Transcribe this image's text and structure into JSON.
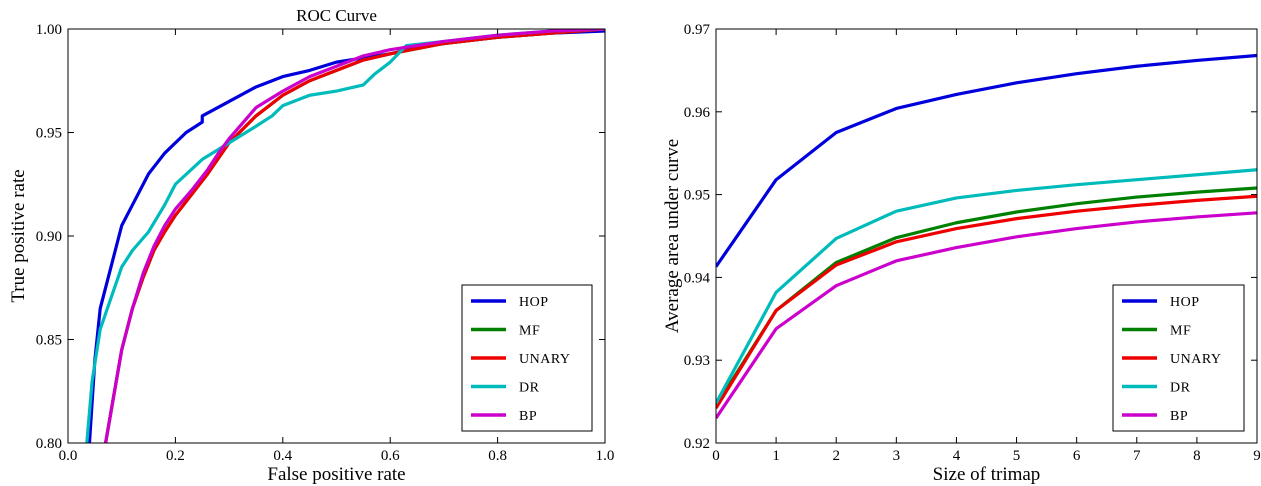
{
  "chart_data": [
    {
      "type": "line",
      "title": "ROC Curve",
      "xlabel": "False positive rate",
      "ylabel": "True positive rate",
      "xlim": [
        0.0,
        1.0
      ],
      "ylim": [
        0.8,
        1.0
      ],
      "xticks": [
        "0.0",
        "0.2",
        "0.4",
        "0.6",
        "0.8",
        "1.0"
      ],
      "yticks": [
        "0.80",
        "0.85",
        "0.90",
        "0.95",
        "1.00"
      ],
      "grid": false,
      "legend_position": "bottom-right",
      "series": [
        {
          "name": "HOP",
          "color": "#0000dd",
          "x": [
            0.04,
            0.05,
            0.06,
            0.08,
            0.1,
            0.12,
            0.14,
            0.15,
            0.18,
            0.22,
            0.25,
            0.25,
            0.3,
            0.35,
            0.4,
            0.45,
            0.5,
            0.55,
            0.6,
            0.65,
            0.7,
            0.8,
            0.9,
            1.0
          ],
          "y": [
            0.8,
            0.84,
            0.865,
            0.885,
            0.905,
            0.915,
            0.925,
            0.93,
            0.94,
            0.95,
            0.955,
            0.958,
            0.965,
            0.972,
            0.977,
            0.98,
            0.984,
            0.986,
            0.988,
            0.991,
            0.993,
            0.996,
            0.998,
            0.999
          ]
        },
        {
          "name": "MF",
          "color": "#008000",
          "x": [
            0.07,
            0.09,
            0.1,
            0.12,
            0.14,
            0.16,
            0.18,
            0.2,
            0.23,
            0.26,
            0.3,
            0.35,
            0.4,
            0.45,
            0.5,
            0.55,
            0.6,
            0.7,
            0.8,
            0.9,
            1.0
          ],
          "y": [
            0.8,
            0.83,
            0.845,
            0.865,
            0.88,
            0.893,
            0.902,
            0.91,
            0.92,
            0.93,
            0.945,
            0.958,
            0.968,
            0.975,
            0.98,
            0.985,
            0.988,
            0.993,
            0.996,
            0.998,
            1.0
          ]
        },
        {
          "name": "UNARY",
          "color": "#ee0000",
          "x": [
            0.07,
            0.09,
            0.1,
            0.12,
            0.14,
            0.16,
            0.18,
            0.2,
            0.23,
            0.26,
            0.3,
            0.35,
            0.4,
            0.45,
            0.5,
            0.55,
            0.6,
            0.7,
            0.8,
            0.9,
            1.0
          ],
          "y": [
            0.8,
            0.83,
            0.845,
            0.865,
            0.88,
            0.893,
            0.902,
            0.91,
            0.92,
            0.93,
            0.945,
            0.958,
            0.968,
            0.975,
            0.98,
            0.985,
            0.988,
            0.993,
            0.996,
            0.998,
            1.0
          ]
        },
        {
          "name": "DR",
          "color": "#00bbbb",
          "x": [
            0.035,
            0.045,
            0.06,
            0.08,
            0.1,
            0.12,
            0.15,
            0.18,
            0.2,
            0.25,
            0.3,
            0.35,
            0.38,
            0.4,
            0.45,
            0.5,
            0.55,
            0.57,
            0.6,
            0.63,
            0.7,
            0.8,
            0.9,
            1.0
          ],
          "y": [
            0.8,
            0.83,
            0.855,
            0.87,
            0.885,
            0.893,
            0.902,
            0.915,
            0.925,
            0.937,
            0.945,
            0.953,
            0.958,
            0.963,
            0.968,
            0.97,
            0.973,
            0.978,
            0.984,
            0.992,
            0.994,
            0.997,
            0.999,
            1.0
          ]
        },
        {
          "name": "BP",
          "color": "#cc00cc",
          "x": [
            0.07,
            0.09,
            0.1,
            0.12,
            0.14,
            0.16,
            0.18,
            0.2,
            0.23,
            0.26,
            0.28,
            0.3,
            0.35,
            0.4,
            0.45,
            0.5,
            0.55,
            0.6,
            0.7,
            0.8,
            0.9,
            1.0
          ],
          "y": [
            0.8,
            0.83,
            0.845,
            0.865,
            0.882,
            0.895,
            0.905,
            0.913,
            0.922,
            0.932,
            0.94,
            0.947,
            0.962,
            0.97,
            0.977,
            0.982,
            0.987,
            0.99,
            0.994,
            0.997,
            0.999,
            1.0
          ]
        }
      ]
    },
    {
      "type": "line",
      "title": "",
      "xlabel": "Size of trimap",
      "ylabel": "Average area under curve",
      "xlim": [
        0,
        9
      ],
      "ylim": [
        0.92,
        0.97
      ],
      "xticks": [
        "0",
        "1",
        "2",
        "3",
        "4",
        "5",
        "6",
        "7",
        "8",
        "9"
      ],
      "yticks": [
        "0.92",
        "0.93",
        "0.94",
        "0.95",
        "0.96",
        "0.97"
      ],
      "grid": false,
      "legend_position": "bottom-right",
      "x": [
        0,
        1,
        2,
        3,
        4,
        5,
        6,
        7,
        8,
        9
      ],
      "series": [
        {
          "name": "HOP",
          "color": "#0000dd",
          "values": [
            0.9413,
            0.9518,
            0.9575,
            0.9604,
            0.9621,
            0.9635,
            0.9646,
            0.9655,
            0.9662,
            0.9668
          ]
        },
        {
          "name": "MF",
          "color": "#008000",
          "values": [
            0.9245,
            0.936,
            0.9418,
            0.9448,
            0.9466,
            0.9479,
            0.9489,
            0.9497,
            0.9503,
            0.9508
          ]
        },
        {
          "name": "UNARY",
          "color": "#ee0000",
          "values": [
            0.9242,
            0.936,
            0.9415,
            0.9443,
            0.9459,
            0.9471,
            0.948,
            0.9487,
            0.9493,
            0.9498
          ]
        },
        {
          "name": "DR",
          "color": "#00bbbb",
          "values": [
            0.9248,
            0.9382,
            0.9447,
            0.948,
            0.9496,
            0.9505,
            0.9512,
            0.9518,
            0.9524,
            0.953
          ]
        },
        {
          "name": "BP",
          "color": "#cc00cc",
          "values": [
            0.923,
            0.9338,
            0.939,
            0.942,
            0.9436,
            0.9449,
            0.9459,
            0.9467,
            0.9473,
            0.9478
          ]
        }
      ]
    }
  ]
}
